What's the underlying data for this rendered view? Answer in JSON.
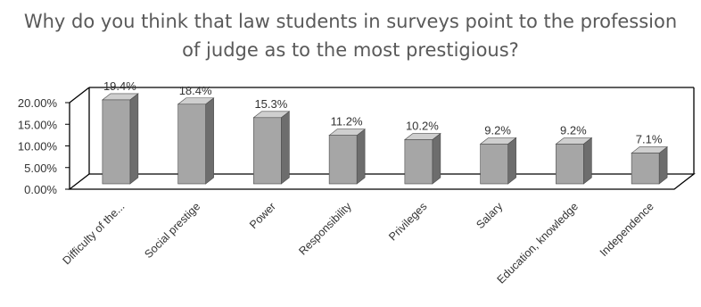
{
  "chart_data": {
    "type": "bar",
    "title_lines": [
      "Why do you think that law students in surveys point to the profession",
      "of judge as to the most prestigious?"
    ],
    "categories": [
      "Difficulty of the...",
      "Social prestige",
      "Power",
      "Responsibility",
      "Privileges",
      "Salary",
      "Education, knowledge",
      "Independence"
    ],
    "values": [
      19.4,
      18.4,
      15.3,
      11.2,
      10.2,
      9.2,
      9.2,
      7.1
    ],
    "data_labels": [
      "19.4%",
      "18.4%",
      "15.3%",
      "11.2%",
      "10.2%",
      "9.2%",
      "9.2%",
      "7.1%"
    ],
    "y_ticks": [
      0,
      5,
      10,
      15,
      20
    ],
    "y_tick_labels": [
      "0.00%",
      "5.00%",
      "10.00%",
      "15.00%",
      "20.00%"
    ],
    "ylim": [
      0,
      20
    ],
    "xlabel": "",
    "ylabel": "",
    "grid": false,
    "three_d": true,
    "colors": {
      "bar_front": "#a6a6a6",
      "bar_side": "#6d6d6d",
      "bar_top": "#cfcfcf",
      "frame": "#000000",
      "text": "#595959"
    }
  }
}
